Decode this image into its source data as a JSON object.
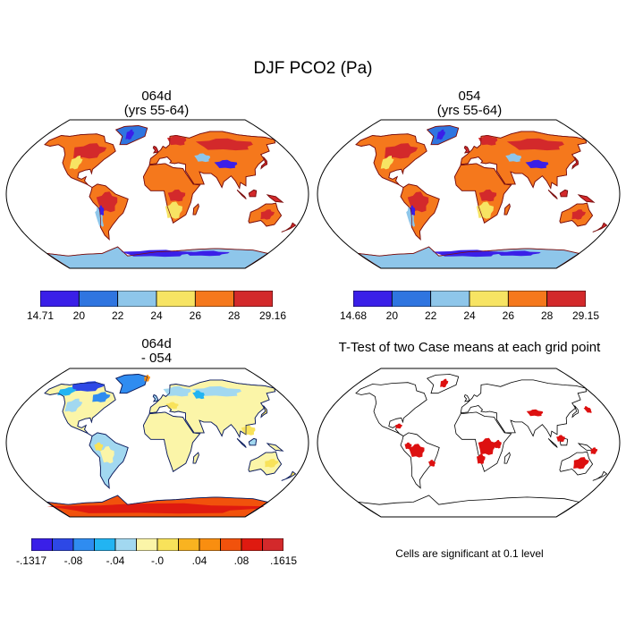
{
  "main_title": "DJF PCO2 (Pa)",
  "chart_data": [
    {
      "type": "heatmap",
      "panel": "top-left",
      "title_line1": "064d",
      "title_line2": "(yrs 55-64)",
      "colorbar": {
        "labels": [
          "14.71",
          "20",
          "22",
          "24",
          "26",
          "28",
          "29.16"
        ],
        "colors": [
          "#3a1fe8",
          "#2f75e0",
          "#8ec6ea",
          "#f7e463",
          "#f5781c",
          "#d3292b"
        ]
      }
    },
    {
      "type": "heatmap",
      "panel": "top-right",
      "title_line1": "054",
      "title_line2": "(yrs 55-64)",
      "colorbar": {
        "labels": [
          "14.68",
          "20",
          "22",
          "24",
          "26",
          "28",
          "29.15"
        ],
        "colors": [
          "#3a1fe8",
          "#2f75e0",
          "#8ec6ea",
          "#f7e463",
          "#f5781c",
          "#d3292b"
        ]
      }
    },
    {
      "type": "heatmap",
      "panel": "bottom-left",
      "title_line1": "064d",
      "title_line2": "- 054",
      "colorbar": {
        "labels": [
          "-.1317",
          "-.08",
          "-.04",
          "-.0",
          ".04",
          ".08",
          ".1615"
        ],
        "colors": [
          "#3a1fe8",
          "#2d48e6",
          "#2f8cf0",
          "#22b4f2",
          "#a2d8f0",
          "#fbf5a8",
          "#f8e25a",
          "#f9b320",
          "#f98e10",
          "#f1520c",
          "#df1a10",
          "#d3292b"
        ]
      }
    },
    {
      "type": "heatmap",
      "panel": "bottom-right",
      "title": "T-Test of two Case means at each grid point",
      "note": "Cells are significant at 0.1 level"
    }
  ]
}
